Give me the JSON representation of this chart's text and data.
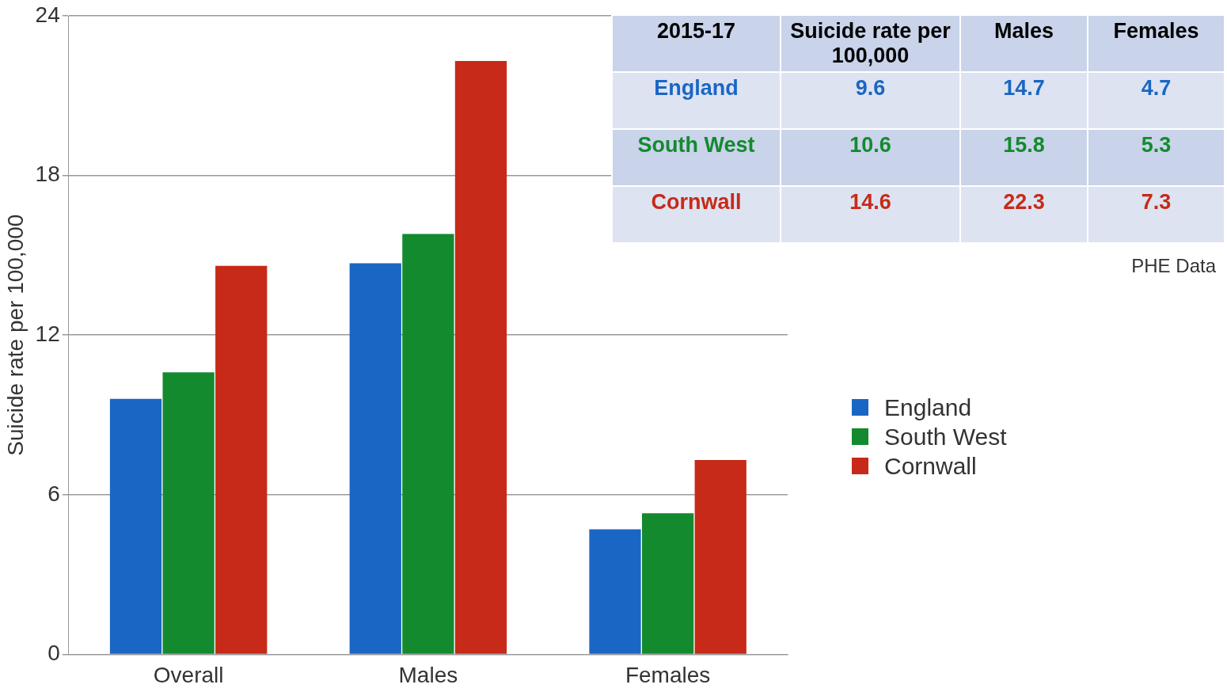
{
  "chart_data": [
    {
      "type": "bar",
      "ylabel": "Suicide rate per 100,000",
      "categories": [
        "Overall",
        "Males",
        "Females"
      ],
      "series": [
        {
          "name": "England",
          "color": "#1a66c4",
          "values": [
            9.6,
            14.7,
            4.7
          ]
        },
        {
          "name": "South West",
          "color": "#138a2e",
          "values": [
            10.6,
            15.8,
            5.3
          ]
        },
        {
          "name": "Cornwall",
          "color": "#c72a18",
          "values": [
            14.6,
            22.3,
            7.3
          ]
        }
      ],
      "ylim": [
        0,
        24
      ],
      "yticks": [
        0,
        6,
        12,
        18,
        24
      ],
      "grid": "y",
      "legend": "right",
      "annotations": [
        "PHE Data"
      ]
    },
    {
      "type": "other",
      "title": "2015-17",
      "categories": [
        "Suicide rate per 100,000",
        "Males",
        "Females"
      ],
      "series": [
        {
          "name": "England",
          "values": [
            9.6,
            14.7,
            4.7
          ]
        },
        {
          "name": "South West",
          "values": [
            10.6,
            15.8,
            5.3
          ]
        },
        {
          "name": "Cornwall",
          "values": [
            14.6,
            22.3,
            7.3
          ]
        }
      ],
      "data_labels": true
    }
  ]
}
